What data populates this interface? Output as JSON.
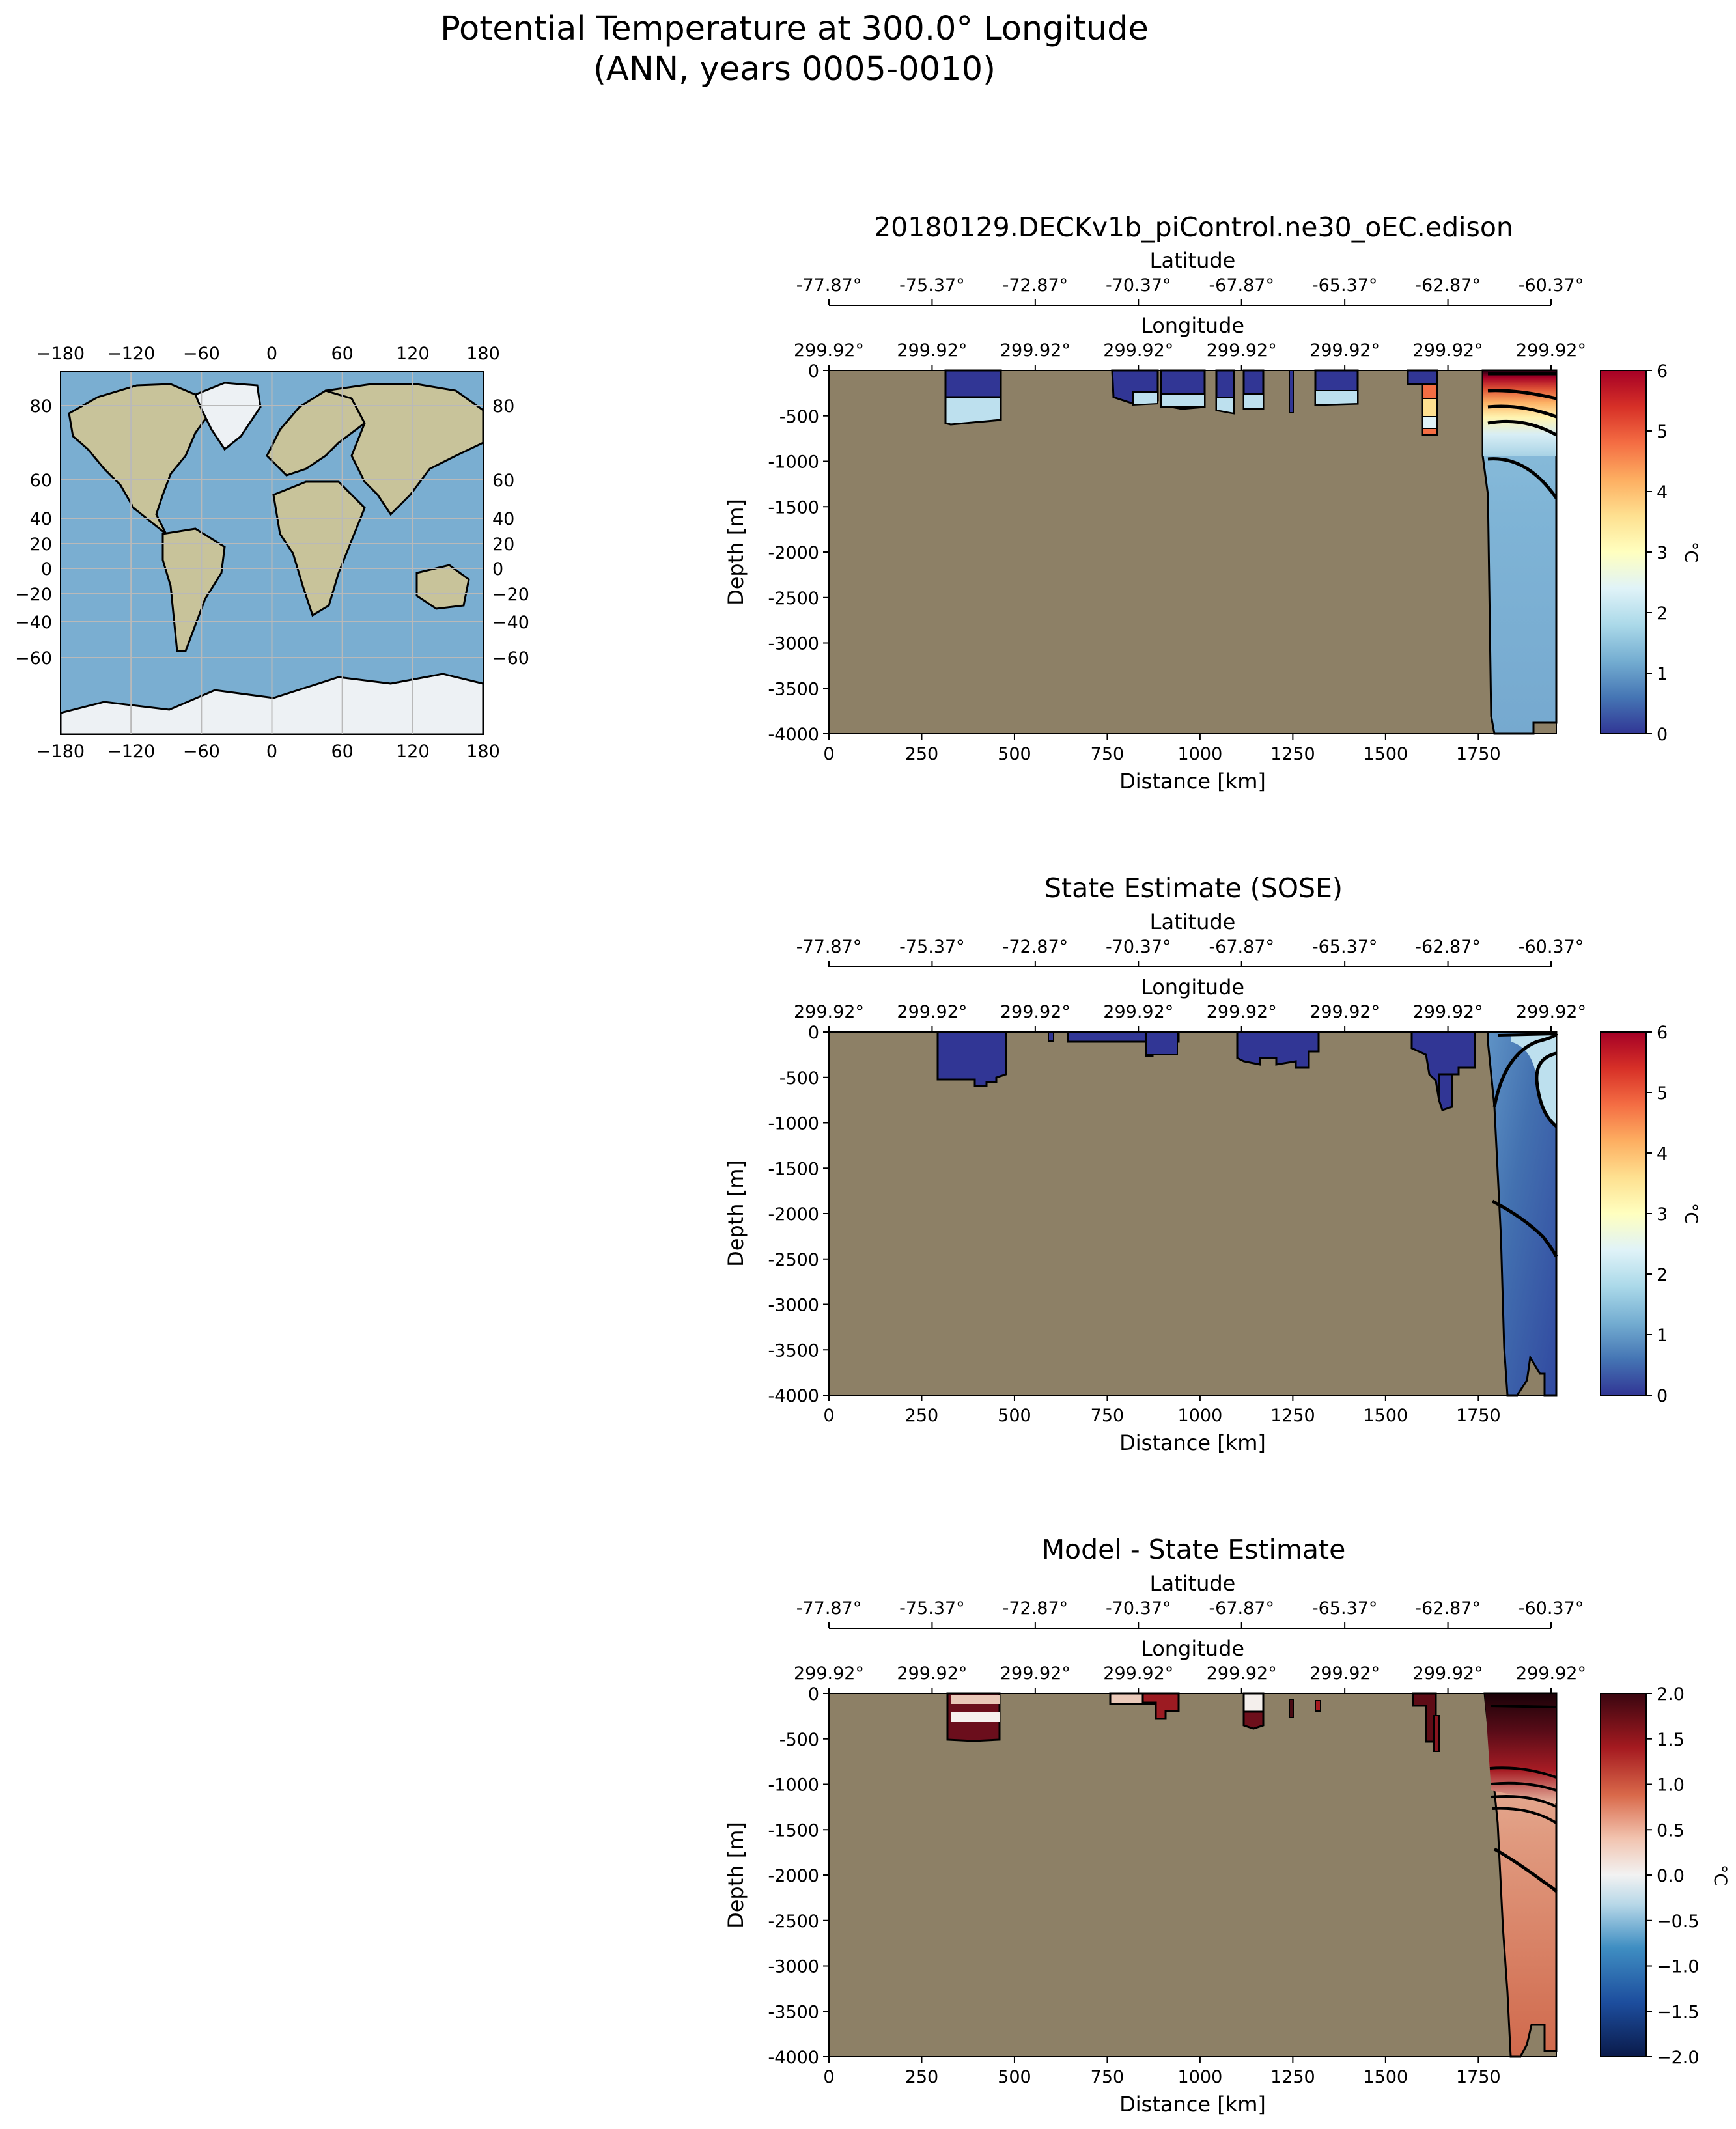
{
  "figure": {
    "title_line1": "Potential Temperature at 300.0° Longitude",
    "title_line2": "(ANN, years 0005-0010)"
  },
  "colors": {
    "land": "#8d8066",
    "ocean_map": "#7aaed1",
    "land_map": "#c8c39a",
    "ice": "#edf1f4",
    "grid": "#b9b9b9"
  },
  "map": {
    "top_ticks": [
      "−180",
      "−120",
      "−60",
      "0",
      "60",
      "120",
      "180"
    ],
    "bottom_ticks": [
      "−180",
      "−120",
      "−60",
      "0",
      "60",
      "120",
      "180"
    ],
    "left_ticks": [
      "80",
      "60",
      "40",
      "20",
      "0",
      "−20",
      "−40",
      "−60"
    ],
    "right_ticks": [
      "80",
      "60",
      "40",
      "20",
      "0",
      "−20",
      "−40",
      "−60"
    ]
  },
  "chart_data": [
    {
      "type": "heatmap",
      "title": "20180129.DECKv1b_piControl.ne30_oEC.edison",
      "xlabel": "Distance [km]",
      "ylabel": "Depth [m]",
      "xlim": [
        0,
        1960
      ],
      "ylim": [
        -4000,
        0
      ],
      "xticks": [
        0,
        250,
        500,
        750,
        1000,
        1250,
        1500,
        1750
      ],
      "yticks": [
        0,
        -500,
        -1000,
        -1500,
        -2000,
        -2500,
        -3000,
        -3500,
        -4000
      ],
      "latitude_label": "Latitude",
      "latitude_ticks": [
        "-77.87°",
        "-75.37°",
        "-72.87°",
        "-70.37°",
        "-67.87°",
        "-65.37°",
        "-62.87°",
        "-60.37°"
      ],
      "longitude_label": "Longitude",
      "longitude_ticks": [
        "299.92°",
        "299.92°",
        "299.92°",
        "299.92°",
        "299.92°",
        "299.92°",
        "299.92°",
        "299.92°"
      ],
      "colorbar_label": "°C",
      "colorbar_range": [
        0,
        6
      ],
      "colorbar_ticks": [
        "0",
        "1",
        "2",
        "3",
        "4",
        "5",
        "6"
      ],
      "colormap": "RdYlBu_r"
    },
    {
      "type": "heatmap",
      "title": "State Estimate (SOSE)",
      "xlabel": "Distance [km]",
      "ylabel": "Depth [m]",
      "xlim": [
        0,
        1960
      ],
      "ylim": [
        -4000,
        0
      ],
      "xticks": [
        0,
        250,
        500,
        750,
        1000,
        1250,
        1500,
        1750
      ],
      "yticks": [
        0,
        -500,
        -1000,
        -1500,
        -2000,
        -2500,
        -3000,
        -3500,
        -4000
      ],
      "latitude_label": "Latitude",
      "latitude_ticks": [
        "-77.87°",
        "-75.37°",
        "-72.87°",
        "-70.37°",
        "-67.87°",
        "-65.37°",
        "-62.87°",
        "-60.37°"
      ],
      "longitude_label": "Longitude",
      "longitude_ticks": [
        "299.92°",
        "299.92°",
        "299.92°",
        "299.92°",
        "299.92°",
        "299.92°",
        "299.92°",
        "299.92°"
      ],
      "colorbar_label": "°C",
      "colorbar_range": [
        0,
        6
      ],
      "colorbar_ticks": [
        "0",
        "1",
        "2",
        "3",
        "4",
        "5",
        "6"
      ],
      "colormap": "RdYlBu_r"
    },
    {
      "type": "heatmap",
      "title": "Model - State Estimate",
      "xlabel": "Distance [km]",
      "ylabel": "Depth [m]",
      "xlim": [
        0,
        1960
      ],
      "ylim": [
        -4000,
        0
      ],
      "xticks": [
        0,
        250,
        500,
        750,
        1000,
        1250,
        1500,
        1750
      ],
      "yticks": [
        0,
        -500,
        -1000,
        -1500,
        -2000,
        -2500,
        -3000,
        -3500,
        -4000
      ],
      "latitude_label": "Latitude",
      "latitude_ticks": [
        "-77.87°",
        "-75.37°",
        "-72.87°",
        "-70.37°",
        "-67.87°",
        "-65.37°",
        "-62.87°",
        "-60.37°"
      ],
      "longitude_label": "Longitude",
      "longitude_ticks": [
        "299.92°",
        "299.92°",
        "299.92°",
        "299.92°",
        "299.92°",
        "299.92°",
        "299.92°",
        "299.92°"
      ],
      "colorbar_label": "°C",
      "colorbar_range": [
        -2,
        2
      ],
      "colorbar_ticks": [
        "−2.0",
        "−1.5",
        "−1.0",
        "−0.5",
        "0.0",
        "0.5",
        "1.0",
        "1.5",
        "2.0"
      ],
      "colormap": "RdBu_r"
    }
  ]
}
